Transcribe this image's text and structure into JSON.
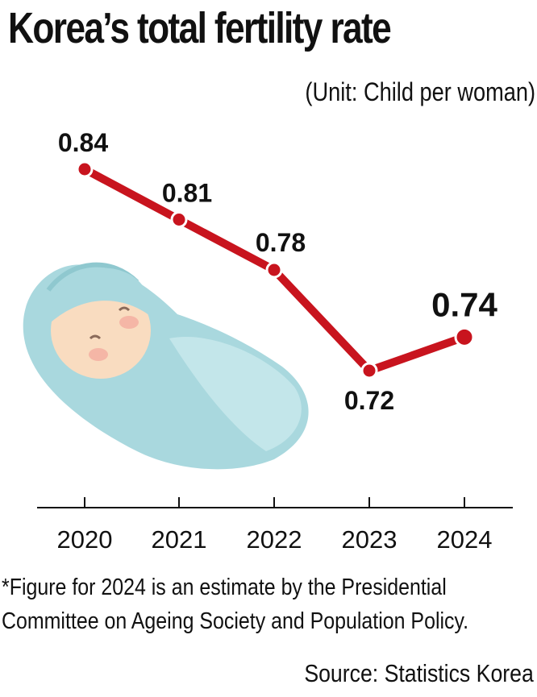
{
  "header": {
    "title": "Korea’s total fertility rate",
    "unit": "(Unit: Child per woman)"
  },
  "chart_data": {
    "type": "line",
    "title": "Korea’s total fertility rate",
    "ylabel": "Child per woman",
    "xlabel": "",
    "categories": [
      "2020",
      "2021",
      "2022",
      "2023",
      "2024"
    ],
    "series": [
      {
        "name": "Total fertility rate",
        "values": [
          0.84,
          0.81,
          0.78,
          0.72,
          0.74
        ],
        "labels": [
          "0.84",
          "0.81",
          "0.78",
          "0.72",
          "0.74"
        ]
      }
    ],
    "ylim": [
      0.72,
      0.84
    ],
    "grid": false,
    "legend": "none",
    "line_color": "#c8141e"
  },
  "illustration": {
    "name": "swaddled-baby",
    "blanket_color": "#a9d8de",
    "face_color": "#f9dcc0"
  },
  "footnote": {
    "lines": [
      "*Figure for 2024 is an estimate by the Presidential",
      "Committee on Ageing Society and Population Policy."
    ]
  },
  "source": "Source: Statistics Korea"
}
